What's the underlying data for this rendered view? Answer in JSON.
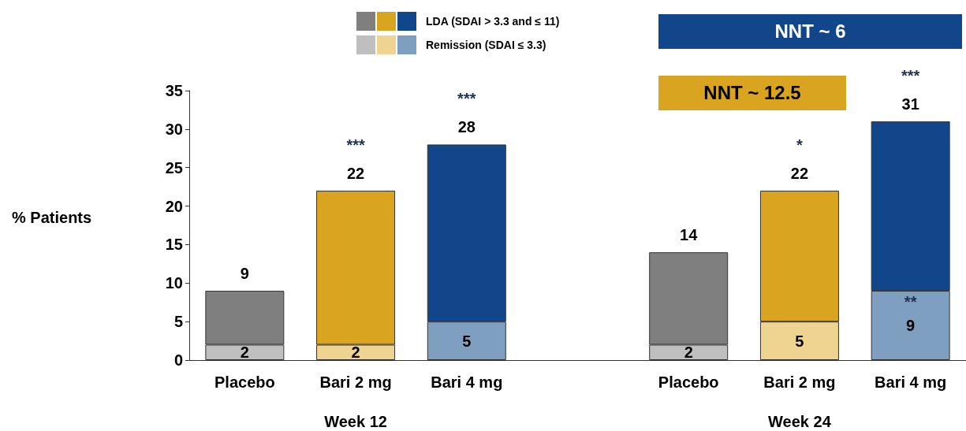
{
  "chart_data": {
    "type": "bar",
    "stacked": true,
    "ylabel": "% Patients",
    "categories": [
      "Placebo",
      "Bari 2 mg",
      "Bari 4 mg",
      null,
      "Placebo",
      "Bari 2 mg",
      "Bari 4 mg"
    ],
    "series": [
      {
        "name": "Remission (SDAI ≤ 3.3)",
        "colors": [
          "#bfbfbf",
          "#eed391",
          "#7f9fc1",
          null,
          "#bfbfbf",
          "#eed391",
          "#7f9fc1"
        ],
        "values": [
          2,
          2,
          5,
          null,
          2,
          5,
          9
        ],
        "value_labels": [
          "2",
          "2",
          "5",
          null,
          "2",
          "5",
          "9"
        ]
      },
      {
        "name": "LDA (SDAI > 3.3 and ≤ 11)",
        "colors": [
          "#7f7f7f",
          "#d9a521",
          "#12468a",
          null,
          "#7f7f7f",
          "#d9a521",
          "#12468a"
        ],
        "values": [
          7,
          20,
          23,
          null,
          12,
          17,
          22
        ]
      }
    ],
    "totals": [
      "9",
      "22",
      "28",
      null,
      "14",
      "22",
      "31"
    ],
    "ylim": [
      0,
      35
    ],
    "yticks": [
      0,
      5,
      10,
      15,
      20,
      25,
      30,
      35
    ],
    "legend": "top",
    "annotations": [
      "NNT ~ 6",
      "NNT ~ 12.5",
      "Week 12",
      "Week 24",
      "***",
      "***",
      "*",
      "***",
      "**"
    ]
  }
}
